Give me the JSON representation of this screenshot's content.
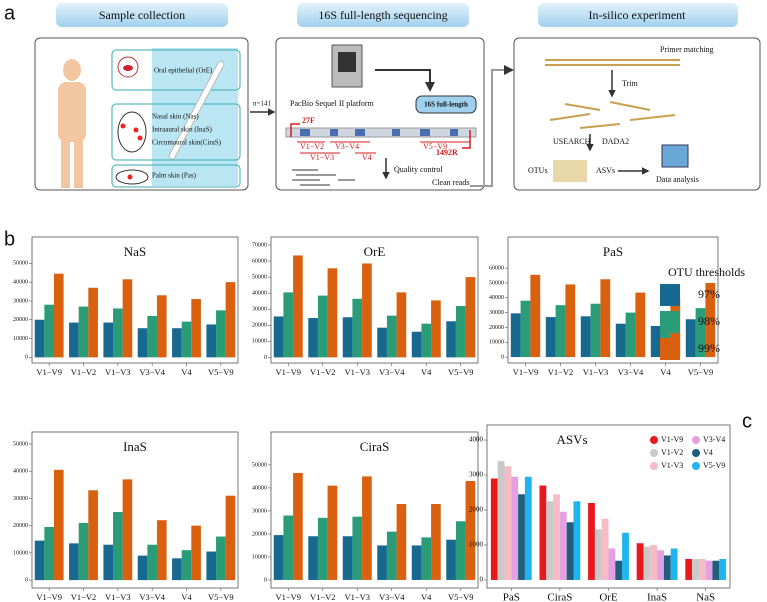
{
  "panel_labels": [
    "a",
    "b",
    "c"
  ],
  "panel_a": {
    "headers": [
      "Sample collection",
      "16S full-length sequencing",
      "In-silico experiment"
    ],
    "sites": [
      "Oral epithelial (OrE)",
      "Nasal skin (Nas)",
      "Intraaural skin (InaS)",
      "Circumaural skin(CiraS)",
      "Palm skin (Pas)"
    ],
    "n": "n=141",
    "platform": "PacBio Sequel II platform",
    "badge": "16S full-length",
    "primers": [
      "27F",
      "1492R"
    ],
    "regions": [
      "V1−V2",
      "V1−V3",
      "V3−V4",
      "V4",
      "V5−V9"
    ],
    "qc": "Quality control",
    "clean": "Clean reads",
    "steps": [
      "Primer matching",
      "Trim",
      "USEARCH",
      "DADA2",
      "OTUs",
      "ASVs",
      "Data analysis"
    ]
  },
  "chart_data": [
    {
      "type": "bar",
      "title": "NaS",
      "legend_title": "OTU thresholds",
      "categories": [
        "V1−V9",
        "V1−V2",
        "V1−V3",
        "V3−V4",
        "V4",
        "V5−V9"
      ],
      "series": [
        {
          "name": "97%",
          "color": "#17698f",
          "values": [
            20000,
            18500,
            18500,
            15500,
            15500,
            17500
          ]
        },
        {
          "name": "98%",
          "color": "#2a9c78",
          "values": [
            28000,
            27000,
            26000,
            22000,
            19000,
            25000
          ]
        },
        {
          "name": "99%",
          "color": "#d8600f",
          "values": [
            44500,
            37000,
            41500,
            33000,
            31000,
            40000
          ]
        }
      ],
      "ylim": [
        -3000,
        64000
      ],
      "yticks": [
        0,
        10000,
        20000,
        30000,
        40000,
        50000
      ]
    },
    {
      "type": "bar",
      "title": "OrE",
      "categories": [
        "V1−V9",
        "V1−V2",
        "V1−V3",
        "V3−V4",
        "V4",
        "V5−V9"
      ],
      "series": [
        {
          "name": "97%",
          "color": "#17698f",
          "values": [
            25500,
            24500,
            25000,
            18500,
            16000,
            22500
          ]
        },
        {
          "name": "98%",
          "color": "#2a9c78",
          "values": [
            40500,
            38500,
            36500,
            26000,
            21000,
            32000
          ]
        },
        {
          "name": "99%",
          "color": "#d8600f",
          "values": [
            63500,
            55500,
            58500,
            40500,
            35500,
            50000
          ]
        }
      ],
      "ylim": [
        -3500,
        75000
      ],
      "yticks": [
        0,
        10000,
        20000,
        30000,
        40000,
        50000,
        60000,
        70000
      ]
    },
    {
      "type": "bar",
      "title": "PaS",
      "categories": [
        "V1−V9",
        "V1−V2",
        "V1−V3",
        "V3−V4",
        "V4",
        "V5−V9"
      ],
      "series": [
        {
          "name": "97%",
          "color": "#17698f",
          "values": [
            29500,
            27000,
            27500,
            22500,
            21000,
            25500
          ]
        },
        {
          "name": "98%",
          "color": "#2a9c78",
          "values": [
            38000,
            35000,
            36000,
            30000,
            26000,
            33000
          ]
        },
        {
          "name": "99%",
          "color": "#d8600f",
          "values": [
            55500,
            49000,
            52500,
            43500,
            40000,
            50000
          ]
        }
      ],
      "ylim": [
        -4000,
        81000
      ],
      "yticks": [
        0,
        10000,
        20000,
        30000,
        40000,
        50000,
        60000
      ]
    },
    {
      "type": "bar",
      "title": "InaS",
      "categories": [
        "V1−V9",
        "V1−V2",
        "V1−V3",
        "V3−V4",
        "V4",
        "V5−V9"
      ],
      "series": [
        {
          "name": "97%",
          "color": "#17698f",
          "values": [
            14500,
            13500,
            13000,
            9000,
            8000,
            10500
          ]
        },
        {
          "name": "98%",
          "color": "#2a9c78",
          "values": [
            19500,
            21000,
            25000,
            13000,
            11000,
            16000
          ]
        },
        {
          "name": "99%",
          "color": "#d8600f",
          "values": [
            40500,
            33000,
            37000,
            22000,
            20000,
            31000
          ]
        }
      ],
      "ylim": [
        -2900,
        54400
      ],
      "yticks": [
        0,
        10000,
        20000,
        30000,
        40000,
        50000
      ]
    },
    {
      "type": "bar",
      "title": "CiraS",
      "categories": [
        "V1−V9",
        "V1−V2",
        "V1−V3",
        "V3−V4",
        "V4",
        "V5−V9"
      ],
      "series": [
        {
          "name": "97%",
          "color": "#17698f",
          "values": [
            19500,
            19000,
            19000,
            15000,
            15000,
            17500
          ]
        },
        {
          "name": "98%",
          "color": "#2a9c78",
          "values": [
            28000,
            27000,
            27500,
            21000,
            18500,
            25500
          ]
        },
        {
          "name": "99%",
          "color": "#d8600f",
          "values": [
            46500,
            41000,
            45000,
            33000,
            33000,
            43000
          ]
        }
      ],
      "ylim": [
        -3500,
        64300
      ],
      "yticks": [
        0,
        10000,
        20000,
        30000,
        40000,
        50000
      ]
    },
    {
      "type": "bar",
      "title": "ASVs",
      "categories": [
        "PaS",
        "CiraS",
        "OrE",
        "InaS",
        "NaS"
      ],
      "series": [
        {
          "name": "V1-V9",
          "color": "#e8181f",
          "values": [
            2900,
            2700,
            2200,
            1050,
            600
          ]
        },
        {
          "name": "V1-V2",
          "color": "#c9c9c9",
          "values": [
            3400,
            2250,
            1450,
            950,
            600
          ]
        },
        {
          "name": "V1-V3",
          "color": "#f5bcc6",
          "values": [
            3250,
            2450,
            1750,
            1000,
            600
          ]
        },
        {
          "name": "V3-V4",
          "color": "#e3a0e2",
          "values": [
            2950,
            1950,
            900,
            850,
            550
          ]
        },
        {
          "name": "V4",
          "color": "#1d5f7c",
          "values": [
            2450,
            1650,
            550,
            700,
            550
          ]
        },
        {
          "name": "V5-V9",
          "color": "#1fb3ef",
          "values": [
            2950,
            2250,
            1350,
            900,
            600
          ]
        }
      ],
      "ylim": [
        -230,
        4430
      ],
      "yticks": [
        0,
        1000,
        2000,
        3000,
        4000
      ]
    }
  ]
}
